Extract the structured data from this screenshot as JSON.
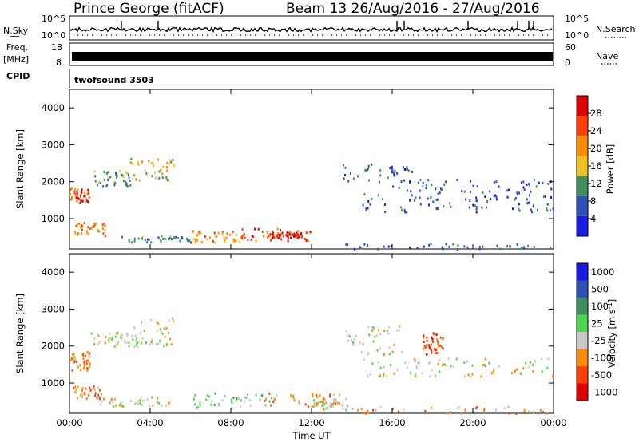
{
  "header": {
    "station": "Prince George (fitACF)",
    "beam_info": "Beam 13 26/Aug/2016 - 27/Aug/2016"
  },
  "top_panels": {
    "nsky_label": "N.Sky",
    "nsearch_label": "N.Search",
    "nsky_ticks": [
      "10^5",
      "10^0"
    ],
    "nsearch_ticks": [
      "10^5",
      "10^0"
    ],
    "freq_label_line1": "Freq.",
    "freq_label_line2": "[MHz]",
    "freq_ticks": [
      "18",
      "8"
    ],
    "nave_label": "Nave",
    "nave_ticks": [
      "60",
      "0"
    ],
    "cpid_label": "CPID",
    "cpid_value": "twofsound 3503"
  },
  "colors": {
    "power": [
      "#1a1ae6",
      "#2f52b8",
      "#3e8f5e",
      "#f0c020",
      "#ff8c00",
      "#ff4000",
      "#e00000"
    ],
    "velocity": [
      "#1a1ae6",
      "#2f52b8",
      "#3e8f5e",
      "#4fd64f",
      "#c8c8c8",
      "#ff8c00",
      "#ff4000",
      "#e00000"
    ]
  },
  "chart_data": [
    {
      "type": "heatmap",
      "ylabel": "Slant Range [km]",
      "xlabel": "",
      "x_ticks": [
        "00:00",
        "04:00",
        "08:00",
        "12:00",
        "16:00",
        "20:00",
        "00:00"
      ],
      "ylim": [
        180,
        4500
      ],
      "y_ticks": [
        1000,
        2000,
        3000,
        4000
      ],
      "colorbar": {
        "label": "Power [dB]",
        "range": [
          0,
          32
        ],
        "ticks": [
          4,
          8,
          12,
          16,
          20,
          24,
          28
        ]
      },
      "regions": [
        {
          "hours": [
            0.0,
            1.0
          ],
          "range_km": [
            1450,
            1850
          ],
          "level": 5
        },
        {
          "hours": [
            0.2,
            1.8
          ],
          "range_km": [
            560,
            920
          ],
          "level": 4
        },
        {
          "hours": [
            1.0,
            3.0
          ],
          "range_km": [
            1900,
            2350
          ],
          "level": 2
        },
        {
          "hours": [
            3.0,
            5.2
          ],
          "range_km": [
            2050,
            2650
          ],
          "level": 3
        },
        {
          "hours": [
            2.5,
            6.0
          ],
          "range_km": [
            380,
            560
          ],
          "level": 2
        },
        {
          "hours": [
            6.0,
            8.5
          ],
          "range_km": [
            380,
            700
          ],
          "level": 4
        },
        {
          "hours": [
            8.5,
            12.0
          ],
          "range_km": [
            420,
            760
          ],
          "level": 5
        },
        {
          "hours": [
            10.0,
            11.5
          ],
          "range_km": [
            500,
            650
          ],
          "level": 6
        },
        {
          "hours": [
            13.5,
            17.0
          ],
          "range_km": [
            2000,
            2500
          ],
          "level": 1
        },
        {
          "hours": [
            13.0,
            24.0
          ],
          "range_km": [
            200,
            350
          ],
          "level": 1
        },
        {
          "hours": [
            14.5,
            24.0
          ],
          "range_km": [
            1200,
            1700
          ],
          "level": 1
        },
        {
          "hours": [
            16.0,
            24.0
          ],
          "range_km": [
            1700,
            2100
          ],
          "level": 1
        }
      ]
    },
    {
      "type": "heatmap",
      "ylabel": "Slant Range [km]",
      "xlabel": "Time UT",
      "x_ticks": [
        "00:00",
        "04:00",
        "08:00",
        "12:00",
        "16:00",
        "20:00",
        "00:00"
      ],
      "ylim": [
        180,
        4500
      ],
      "y_ticks": [
        1000,
        2000,
        3000,
        4000
      ],
      "colorbar": {
        "label": "Velocity [m s-1]",
        "ticks": [
          "1000",
          "500",
          "100",
          "25",
          "-25",
          "-100",
          "-500",
          "-1000"
        ]
      },
      "regions": [
        {
          "hours": [
            0.0,
            1.0
          ],
          "range_km": [
            1350,
            1900
          ],
          "level": 5
        },
        {
          "hours": [
            0.1,
            1.6
          ],
          "range_km": [
            600,
            950
          ],
          "level": 5
        },
        {
          "hours": [
            1.0,
            3.5
          ],
          "range_km": [
            2000,
            2400
          ],
          "level": 4
        },
        {
          "hours": [
            3.0,
            5.2
          ],
          "range_km": [
            2000,
            2800
          ],
          "level": 4
        },
        {
          "hours": [
            1.5,
            5.0
          ],
          "range_km": [
            380,
            650
          ],
          "level": 4
        },
        {
          "hours": [
            6.0,
            10.0
          ],
          "range_km": [
            350,
            750
          ],
          "level": 3
        },
        {
          "hours": [
            9.5,
            13.5
          ],
          "range_km": [
            380,
            750
          ],
          "level": 5
        },
        {
          "hours": [
            12.0,
            13.8
          ],
          "range_km": [
            300,
            600
          ],
          "level": 4
        },
        {
          "hours": [
            13.5,
            16.5
          ],
          "range_km": [
            1800,
            2600
          ],
          "level": 4
        },
        {
          "hours": [
            14.5,
            24.0
          ],
          "range_km": [
            1200,
            1700
          ],
          "level": 4
        },
        {
          "hours": [
            17.5,
            18.5
          ],
          "range_km": [
            1800,
            2400
          ],
          "level": 6
        },
        {
          "hours": [
            14.0,
            24.0
          ],
          "range_km": [
            200,
            400
          ],
          "level": 5
        }
      ]
    }
  ]
}
